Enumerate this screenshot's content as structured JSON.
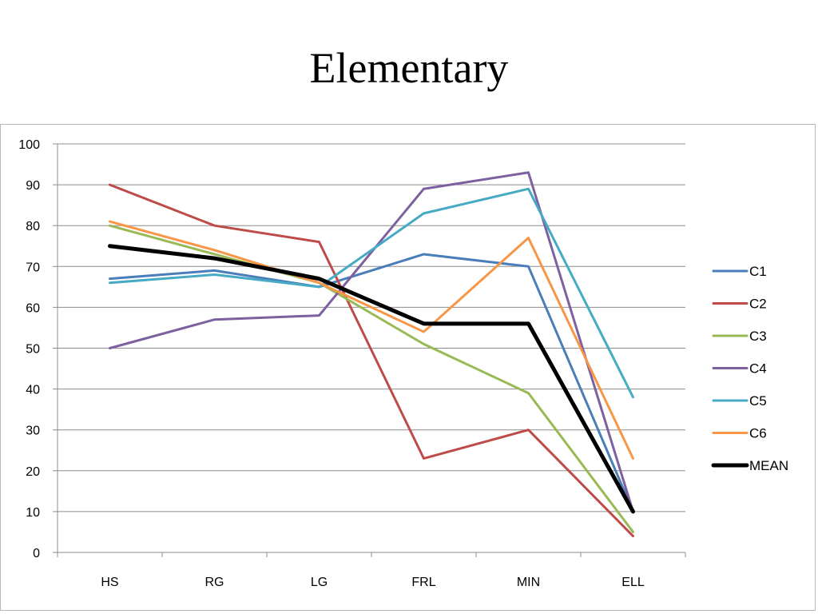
{
  "slide": {
    "title": "Elementary"
  },
  "chart_data": {
    "type": "line",
    "categories": [
      "HS",
      "RG",
      "LG",
      "FRL",
      "MIN",
      "ELL"
    ],
    "ylim": [
      0,
      100
    ],
    "yticks": [
      0,
      10,
      20,
      30,
      40,
      50,
      60,
      70,
      80,
      90,
      100
    ],
    "grid": true,
    "legend_position": "right",
    "series": [
      {
        "name": "C1",
        "color": "#4a7ebb",
        "values": [
          67,
          69,
          65,
          73,
          70,
          10
        ]
      },
      {
        "name": "C2",
        "color": "#be4b48",
        "values": [
          90,
          80,
          76,
          23,
          30,
          4
        ]
      },
      {
        "name": "C3",
        "color": "#98b954",
        "values": [
          80,
          73,
          66,
          51,
          39,
          5
        ]
      },
      {
        "name": "C4",
        "color": "#7d60a0",
        "values": [
          50,
          57,
          58,
          89,
          93,
          10
        ]
      },
      {
        "name": "C5",
        "color": "#46aac5",
        "values": [
          66,
          68,
          65,
          83,
          89,
          38
        ]
      },
      {
        "name": "C6",
        "color": "#f79646",
        "values": [
          81,
          74,
          66,
          54,
          77,
          23
        ]
      },
      {
        "name": "MEAN",
        "color": "#000000",
        "values": [
          75,
          72,
          67,
          56,
          56,
          10
        ],
        "bold": true
      }
    ]
  }
}
